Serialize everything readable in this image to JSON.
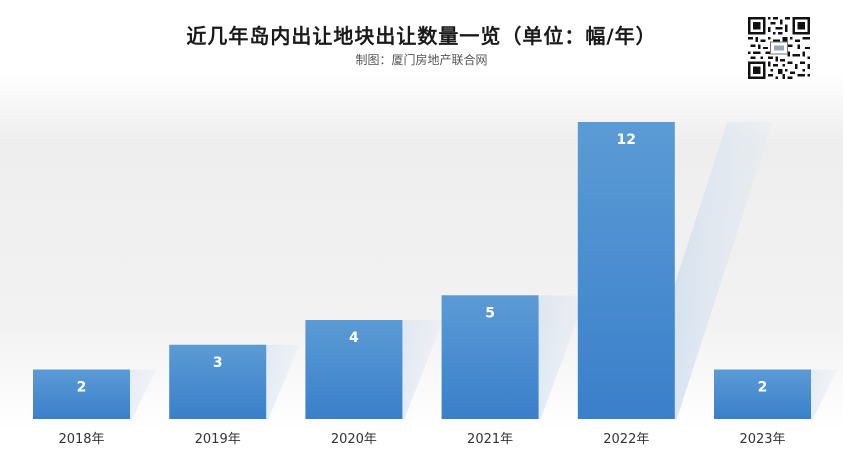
{
  "title": "近几年岛内出让地块出让数量一览（单位：幅/年）",
  "subtitle": "制图：厦门房地产联合网",
  "qr_icon": "qr-code-icon",
  "colors": {
    "bar_top": "#5b9bd5",
    "bar_bottom": "#3a7fca",
    "label": "#ffffff",
    "axis_text": "#333333"
  },
  "chart_data": {
    "type": "bar",
    "title": "近几年岛内出让地块出让数量一览（单位：幅/年）",
    "categories": [
      "2018年",
      "2019年",
      "2020年",
      "2021年",
      "2022年",
      "2023年"
    ],
    "values": [
      2,
      3,
      4,
      5,
      12,
      2
    ],
    "data_labels": [
      "2",
      "3",
      "4",
      "5",
      "12",
      "2"
    ],
    "xlabel": "",
    "ylabel": "",
    "ylim": [
      0,
      12
    ],
    "grid": false,
    "legend": "none",
    "style": "3d-shadow"
  }
}
